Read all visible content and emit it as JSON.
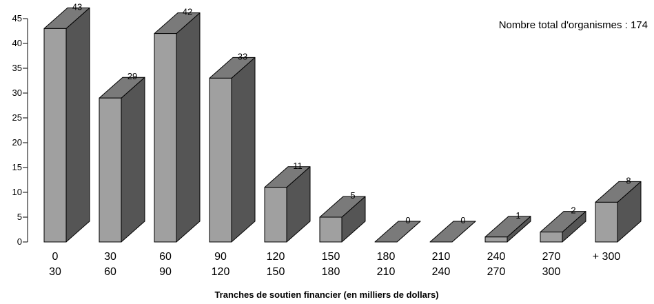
{
  "chart_data": {
    "type": "bar",
    "title": "",
    "xlabel": "Tranches de soutien financier (en milliers de dollars)",
    "ylabel": "",
    "ylim": [
      0,
      45
    ],
    "yticks": [
      0,
      5,
      10,
      15,
      20,
      25,
      30,
      35,
      40,
      45
    ],
    "grid": false,
    "three_d": true,
    "categories": [
      [
        "0",
        "30"
      ],
      [
        "30",
        "60"
      ],
      [
        "60",
        "90"
      ],
      [
        "90",
        "120"
      ],
      [
        "120",
        "150"
      ],
      [
        "150",
        "180"
      ],
      [
        "180",
        "210"
      ],
      [
        "210",
        "240"
      ],
      [
        "240",
        "270"
      ],
      [
        "270",
        "300"
      ],
      [
        "+ 300",
        ""
      ]
    ],
    "values": [
      43,
      29,
      42,
      33,
      11,
      5,
      0,
      0,
      1,
      2,
      8
    ],
    "annotation": "Nombre total d'organismes : 174",
    "colors": {
      "front": "#a0a0a0",
      "side": "#555555",
      "top": "#7a7a7a",
      "outline": "#000000"
    }
  }
}
